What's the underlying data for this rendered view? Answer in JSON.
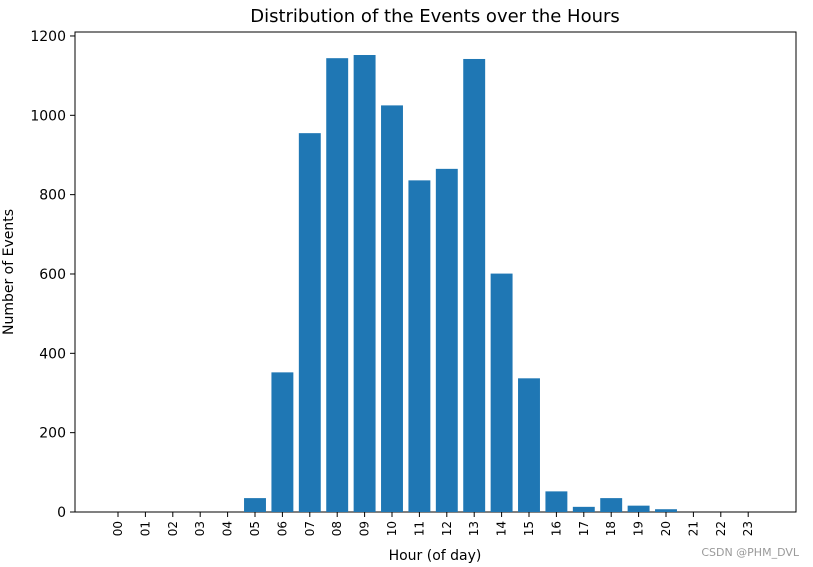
{
  "chart_data": {
    "type": "bar",
    "title": "Distribution of the Events over the Hours",
    "xlabel": "Hour (of day)",
    "ylabel": "Number of Events",
    "categories": [
      "00",
      "01",
      "02",
      "03",
      "04",
      "05",
      "06",
      "07",
      "08",
      "09",
      "10",
      "11",
      "12",
      "13",
      "14",
      "15",
      "16",
      "17",
      "18",
      "19",
      "20",
      "21",
      "22",
      "23"
    ],
    "values": [
      0,
      0,
      0,
      0,
      0,
      35,
      352,
      955,
      1144,
      1152,
      1025,
      836,
      865,
      1142,
      601,
      337,
      52,
      13,
      35,
      16,
      7,
      0,
      0,
      0
    ],
    "ylim": [
      0,
      1210
    ],
    "yticks": [
      0,
      200,
      400,
      600,
      800,
      1000,
      1200
    ],
    "bar_color": "#1f77b4",
    "grid": false,
    "legend": "none"
  },
  "watermark": "CSDN @PHM_DVL"
}
